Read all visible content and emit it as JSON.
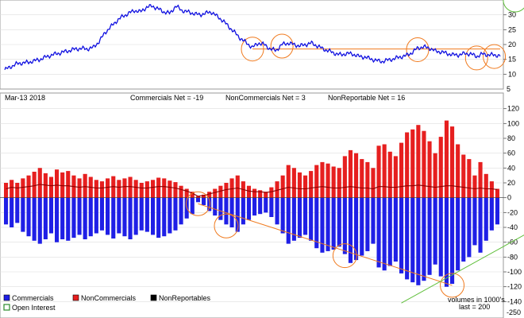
{
  "colors": {
    "price": "#1010e0",
    "commercials": "#1f1fe6",
    "noncommercials": "#e61f1f",
    "nonreportables": "#000000",
    "open_interest": "#2a8a2a",
    "annotation_orange": "#f07a1e",
    "annotation_green": "#5fbf3a",
    "net_line": "#8b0000",
    "grid": "#dddddd"
  },
  "top_axis": {
    "ticks": [
      "30",
      "25",
      "20",
      "15",
      "10"
    ]
  },
  "header": {
    "date": "Mar-13  2018",
    "commercials_net": "Commercials Net = -19",
    "noncommercials_net": "NonCommercials Net = 3",
    "nonreportable_net": "NonReportable Net = 16"
  },
  "bottom_axis": {
    "ticks": [
      "120",
      "100",
      "80",
      "60",
      "40",
      "20",
      "0",
      "-20",
      "-40",
      "-60",
      "-80",
      "-100",
      "-120",
      "-140"
    ],
    "partial_tick": "5",
    "extra_tick": "-250"
  },
  "legend": {
    "commercials": "Commercials",
    "noncommercials": "NonCommercials",
    "nonreportables": "NonReportables",
    "open_interest": "Open Interest",
    "volumes_note": "volumes in 1000's",
    "last_note": "last = 200"
  },
  "chart_data": [
    {
      "type": "line",
      "title": "",
      "series": [
        {
          "values": [
            11.5,
            12.5,
            13.5,
            13.8,
            14.0,
            14.5,
            15.0,
            15.8,
            16.5,
            17.0,
            17.5,
            18.0,
            18.5,
            18.7,
            18.5,
            19.0,
            21.0,
            24.0,
            26.0,
            28.0,
            29.5,
            30.5,
            31.5,
            31.0,
            32.5,
            33.0,
            32.0,
            31.0,
            30.5,
            33.0,
            31.5,
            31.0,
            30.5,
            30.0,
            30.5,
            31.0,
            29.5,
            28.0,
            26.0,
            24.0,
            22.0,
            20.5,
            19.0,
            20.5,
            20.0,
            18.5,
            18.0,
            20.0,
            20.5,
            20.0,
            19.5,
            20.0,
            20.5,
            19.5,
            18.5,
            17.8,
            17.0,
            16.5,
            17.0,
            16.8,
            16.0,
            15.8,
            15.2,
            14.6,
            14.3,
            14.8,
            15.2,
            15.8,
            16.2,
            17.2,
            18.8,
            19.2,
            18.8,
            17.8,
            17.5,
            17.0,
            16.5,
            16.5,
            17.0,
            16.8,
            16.0,
            16.8,
            16.5,
            16.5,
            16.2
          ]
        }
      ],
      "ylim": [
        5,
        35
      ],
      "ticks": [
        10,
        15,
        20,
        25,
        30
      ],
      "annotations": {
        "horizontal_line": 18.5,
        "circles_at_index": [
          42,
          47,
          70,
          80,
          83
        ]
      }
    },
    {
      "type": "bar",
      "title": "",
      "ylim": [
        -145,
        125
      ],
      "ticks": [
        120,
        100,
        80,
        60,
        40,
        20,
        0,
        -20,
        -40,
        -60,
        -80,
        -100,
        -120,
        -140
      ],
      "series": [
        {
          "name": "NonCommercials",
          "values": [
            20,
            24,
            20,
            26,
            30,
            35,
            40,
            33,
            28,
            38,
            34,
            36,
            30,
            26,
            32,
            28,
            24,
            22,
            26,
            29,
            24,
            26,
            28,
            24,
            20,
            22,
            24,
            27,
            26,
            23,
            21,
            16,
            12,
            8,
            2,
            4,
            8,
            12,
            16,
            20,
            26,
            30,
            22,
            16,
            12,
            10,
            8,
            14,
            22,
            30,
            44,
            40,
            34,
            30,
            36,
            44,
            48,
            46,
            42,
            40,
            56,
            64,
            60,
            52,
            48,
            40,
            70,
            72,
            62,
            56,
            74,
            88,
            92,
            98,
            90,
            76,
            60,
            82,
            104,
            96,
            72,
            58,
            52,
            30,
            48,
            32,
            22,
            12
          ]
        },
        {
          "name": "Commercials",
          "values": [
            -36,
            -40,
            -34,
            -46,
            -52,
            -58,
            -62,
            -56,
            -48,
            -60,
            -56,
            -58,
            -54,
            -50,
            -56,
            -52,
            -48,
            -44,
            -50,
            -55,
            -48,
            -52,
            -56,
            -50,
            -44,
            -46,
            -50,
            -54,
            -52,
            -48,
            -44,
            -36,
            -28,
            -22,
            -6,
            -10,
            -18,
            -24,
            -30,
            -36,
            -40,
            -46,
            -36,
            -30,
            -24,
            -22,
            -20,
            -26,
            -36,
            -48,
            -62,
            -58,
            -54,
            -50,
            -58,
            -68,
            -74,
            -72,
            -70,
            -66,
            -76,
            -88,
            -84,
            -78,
            -72,
            -62,
            -94,
            -98,
            -92,
            -86,
            -102,
            -110,
            -114,
            -118,
            -112,
            -104,
            -90,
            -106,
            -120,
            -116,
            -98,
            -86,
            -80,
            -64,
            -74,
            -58,
            -44,
            -36
          ]
        },
        {
          "name": "Net",
          "values": [
            12,
            14,
            13,
            14,
            15,
            16,
            18,
            17,
            16,
            17,
            16,
            16,
            15,
            14,
            15,
            14,
            13,
            13,
            14,
            15,
            14,
            15,
            15,
            14,
            13,
            13,
            14,
            15,
            15,
            14,
            13,
            11,
            9,
            6,
            2,
            3,
            5,
            7,
            9,
            11,
            12,
            13,
            11,
            9,
            8,
            8,
            7,
            8,
            10,
            12,
            14,
            13,
            12,
            12,
            13,
            14,
            15,
            14,
            13,
            13,
            14,
            15,
            14,
            13,
            13,
            12,
            15,
            15,
            14,
            14,
            15,
            16,
            16,
            17,
            16,
            15,
            14,
            15,
            16,
            16,
            15,
            14,
            13,
            12,
            13,
            12,
            12,
            11
          ]
        }
      ],
      "annotations": {
        "orange_circles_at_index": [
          34,
          39,
          60,
          79
        ],
        "green_circles_at_index": [
          91,
          96
        ]
      }
    }
  ]
}
